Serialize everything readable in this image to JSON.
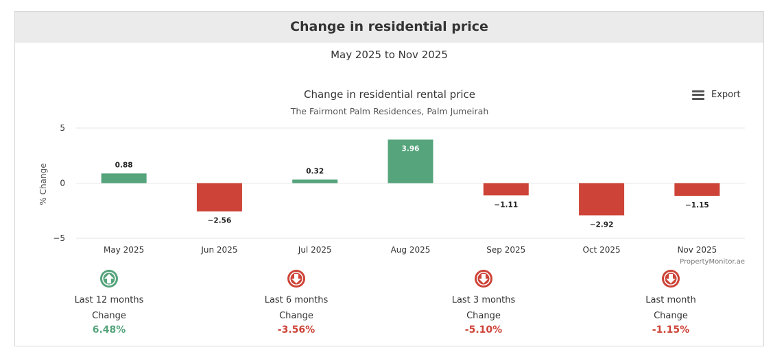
{
  "panel": {
    "title": "Change in residential price",
    "range": "May 2025 to Nov 2025",
    "export_label": "Export"
  },
  "colors": {
    "positive": "#55a47c",
    "negative": "#cd4337",
    "grid": "#e6e6e6"
  },
  "chart_data": {
    "type": "bar",
    "title": "Change in residential rental price",
    "subtitle": "The Fairmont Palm Residences, Palm Jumeirah",
    "ylabel": "% Change",
    "xlabel": "",
    "ylim": [
      -5,
      5
    ],
    "yticks": [
      "5",
      "0",
      "−5"
    ],
    "categories": [
      "May 2025",
      "Jun 2025",
      "Jul 2025",
      "Aug 2025",
      "Sep 2025",
      "Oct 2025",
      "Nov 2025"
    ],
    "values": [
      0.88,
      -2.56,
      0.32,
      3.96,
      -1.11,
      -2.92,
      -1.15
    ],
    "labels": [
      "0.88",
      "−2.56",
      "0.32",
      "3.96",
      "−1.11",
      "−2.92",
      "−1.15"
    ],
    "credit": "PropertyMonitor.ae"
  },
  "summary": [
    {
      "icon": "arrow-up-circle-icon",
      "trend": "up",
      "period": "Last 12 months",
      "change_label": "Change",
      "value": "6.48%"
    },
    {
      "icon": "arrow-down-circle-icon",
      "trend": "down",
      "period": "Last 6 months",
      "change_label": "Change",
      "value": "-3.56%"
    },
    {
      "icon": "arrow-down-circle-icon",
      "trend": "down",
      "period": "Last 3 months",
      "change_label": "Change",
      "value": "-5.10%"
    },
    {
      "icon": "arrow-down-circle-icon",
      "trend": "down",
      "period": "Last month",
      "change_label": "Change",
      "value": "-1.15%"
    }
  ]
}
